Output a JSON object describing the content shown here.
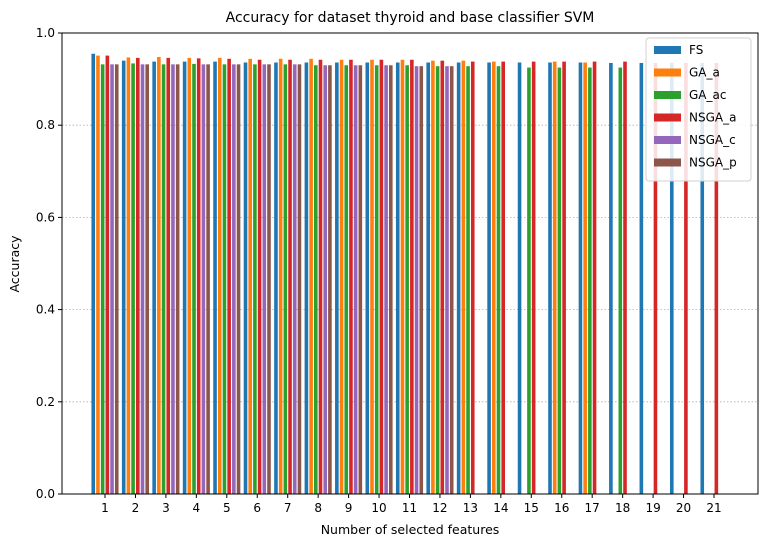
{
  "chart_data": {
    "type": "bar",
    "title": "Accuracy for dataset thyroid and base classifier SVM",
    "xlabel": "Number of selected features",
    "ylabel": "Accuracy",
    "ylim": [
      0,
      1.0
    ],
    "yticks": [
      "0.0",
      "0.2",
      "0.4",
      "0.6",
      "0.8",
      "1.0"
    ],
    "grid": "y dotted",
    "legend_position": "top-right",
    "categories": [
      "1",
      "2",
      "3",
      "4",
      "5",
      "6",
      "7",
      "8",
      "9",
      "10",
      "11",
      "12",
      "13",
      "14",
      "15",
      "16",
      "17",
      "18",
      "19",
      "20",
      "21"
    ],
    "series": [
      {
        "name": "FS",
        "color": "#1f77b4",
        "values": [
          0.955,
          0.94,
          0.938,
          0.938,
          0.938,
          0.936,
          0.936,
          0.936,
          0.936,
          0.936,
          0.936,
          0.936,
          0.936,
          0.936,
          0.936,
          0.936,
          0.936,
          0.935,
          0.935,
          0.935,
          0.935
        ]
      },
      {
        "name": "GA_a",
        "color": "#ff7f0e",
        "values": [
          0.951,
          0.947,
          0.948,
          0.946,
          0.946,
          0.944,
          0.944,
          0.944,
          0.942,
          0.942,
          0.942,
          0.94,
          0.94,
          0.938,
          null,
          0.938,
          0.936,
          null,
          null,
          null,
          null
        ]
      },
      {
        "name": "GA_ac",
        "color": "#2ca02c",
        "values": [
          0.932,
          0.934,
          0.932,
          0.933,
          0.932,
          0.932,
          0.932,
          0.93,
          0.93,
          0.93,
          0.93,
          0.928,
          0.928,
          0.928,
          0.925,
          0.925,
          0.925,
          0.925,
          null,
          null,
          null
        ]
      },
      {
        "name": "NSGA_a",
        "color": "#d62728",
        "values": [
          0.951,
          0.946,
          0.946,
          0.945,
          0.944,
          0.942,
          0.942,
          0.942,
          0.942,
          0.942,
          0.942,
          0.94,
          0.938,
          0.938,
          0.938,
          0.938,
          0.938,
          0.938,
          0.935,
          0.935,
          0.935
        ]
      },
      {
        "name": "NSGA_c",
        "color": "#9467bd",
        "values": [
          0.932,
          0.932,
          0.932,
          0.932,
          0.932,
          0.932,
          0.932,
          0.93,
          0.93,
          0.93,
          0.928,
          0.928,
          null,
          null,
          null,
          null,
          null,
          null,
          null,
          null,
          null
        ]
      },
      {
        "name": "NSGA_p",
        "color": "#8c564b",
        "values": [
          0.932,
          0.932,
          0.932,
          0.932,
          0.932,
          0.932,
          0.932,
          0.93,
          0.93,
          0.93,
          0.928,
          0.928,
          null,
          null,
          null,
          null,
          null,
          null,
          null,
          null,
          null
        ]
      }
    ]
  }
}
